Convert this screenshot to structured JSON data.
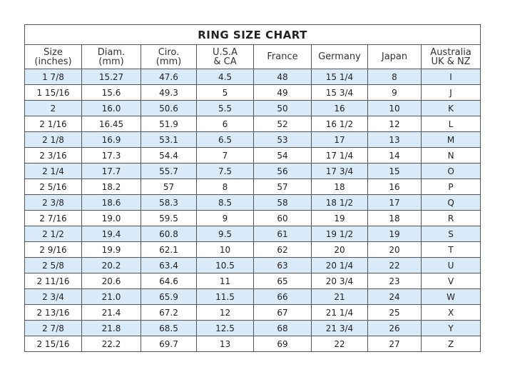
{
  "title": "RING SIZE CHART",
  "headers": [
    {
      "line1": "Size",
      "line2": "(inches)"
    },
    {
      "line1": "Diam.",
      "line2": "(mm)"
    },
    {
      "line1": "Ciro.",
      "line2": "(mm)"
    },
    {
      "line1": "U.S.A",
      "line2": "& CA"
    },
    {
      "line1": "France",
      "line2": ""
    },
    {
      "line1": "Germany",
      "line2": ""
    },
    {
      "line1": "Japan",
      "line2": ""
    },
    {
      "line1": "Australia",
      "line2": "UK & NZ"
    }
  ],
  "rows": [
    [
      "1 7/8",
      "15.27",
      "47.6",
      "4.5",
      "48",
      "15 1/4",
      "8",
      "I"
    ],
    [
      "1 15/16",
      "15.6",
      "49.3",
      "5",
      "49",
      "15 3/4",
      "9",
      "J"
    ],
    [
      "2",
      "16.0",
      "50.6",
      "5.5",
      "50",
      "16",
      "10",
      "K"
    ],
    [
      "2 1/16",
      "16.45",
      "51.9",
      "6",
      "52",
      "16 1/2",
      "12",
      "L"
    ],
    [
      "2 1/8",
      "16.9",
      "53.1",
      "6.5",
      "53",
      "17",
      "13",
      "M"
    ],
    [
      "2 3/16",
      "17.3",
      "54.4",
      "7",
      "54",
      "17 1/4",
      "14",
      "N"
    ],
    [
      "2 1/4",
      "17.7",
      "55.7",
      "7.5",
      "56",
      "17 3/4",
      "15",
      "O"
    ],
    [
      "2 5/16",
      "18.2",
      "57",
      "8",
      "57",
      "18",
      "16",
      "P"
    ],
    [
      "2 3/8",
      "18.6",
      "58.3",
      "8.5",
      "58",
      "18 1/2",
      "17",
      "Q"
    ],
    [
      "2 7/16",
      "19.0",
      "59.5",
      "9",
      "60",
      "19",
      "18",
      "R"
    ],
    [
      "2 1/2",
      "19.4",
      "60.8",
      "9.5",
      "61",
      "19 1/2",
      "19",
      "S"
    ],
    [
      "2 9/16",
      "19.9",
      "62.1",
      "10",
      "62",
      "20",
      "20",
      "T"
    ],
    [
      "2 5/8",
      "20.2",
      "63.4",
      "10.5",
      "63",
      "20 1/4",
      "22",
      "U"
    ],
    [
      "2 11/16",
      "20.6",
      "64.6",
      "11",
      "65",
      "20 3/4",
      "23",
      "V"
    ],
    [
      "2 3/4",
      "21.0",
      "65.9",
      "11.5",
      "66",
      "21",
      "24",
      "W"
    ],
    [
      "2 13/16",
      "21.4",
      "67.2",
      "12",
      "67",
      "21 1/4",
      "25",
      "X"
    ],
    [
      "2 7/8",
      "21.8",
      "68.5",
      "12.5",
      "68",
      "21 3/4",
      "26",
      "Y"
    ],
    [
      "2 15/16",
      "22.2",
      "69.7",
      "13",
      "69",
      "22",
      "27",
      "Z"
    ]
  ],
  "colors": {
    "shaded_row": "#d9eaf9",
    "border": "#555555"
  }
}
